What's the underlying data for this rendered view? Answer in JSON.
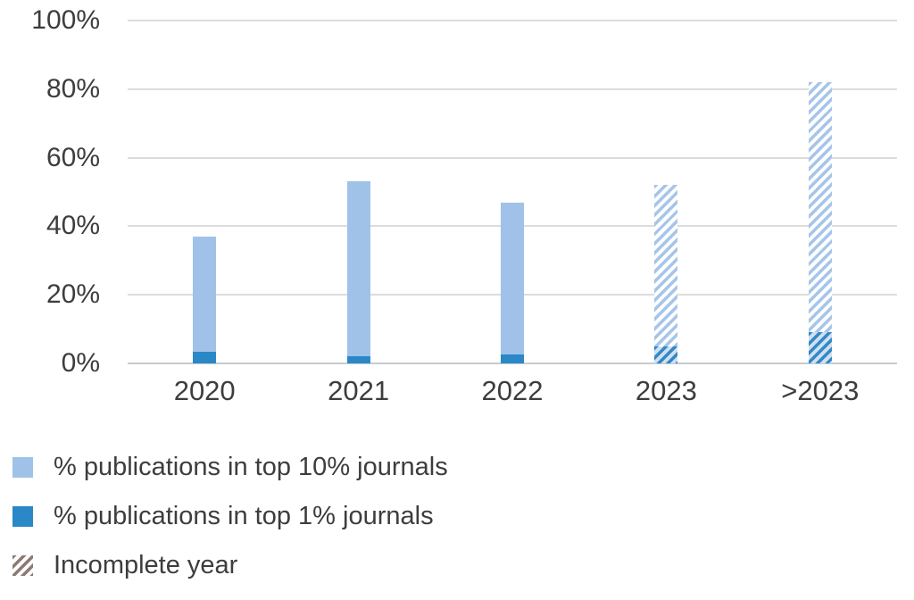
{
  "chart_data": {
    "type": "bar",
    "title": "",
    "xlabel": "",
    "ylabel": "",
    "categories": [
      "2020",
      "2021",
      "2022",
      "2023",
      ">2023"
    ],
    "series": [
      {
        "name": "% publications in top 10% journals",
        "values": [
          37,
          53,
          47,
          52,
          82
        ]
      },
      {
        "name": "% publications in top 1% journals",
        "values": [
          3.5,
          2,
          2.5,
          5,
          9
        ]
      }
    ],
    "incomplete_flags": [
      false,
      false,
      false,
      true,
      true
    ],
    "ylim": [
      0,
      100
    ],
    "yticks": [
      {
        "value": 0,
        "label": "0%"
      },
      {
        "value": 20,
        "label": "20%"
      },
      {
        "value": 40,
        "label": "40%"
      },
      {
        "value": 60,
        "label": "60%"
      },
      {
        "value": 80,
        "label": "80%"
      },
      {
        "value": 100,
        "label": "100%"
      }
    ],
    "grid": "horizontal",
    "legend_position": "bottom-left",
    "legend": [
      {
        "label": "% publications in top 10% journals",
        "swatch": "solid-light-blue"
      },
      {
        "label": "% publications in top 1% journals",
        "swatch": "solid-dark-blue"
      },
      {
        "label": "Incomplete year",
        "swatch": "hatched"
      }
    ],
    "colors": {
      "top10_fill": "#a0c2e8",
      "top1_fill": "#2a88c6",
      "hatch_top10_stripe": "#a6c5ea",
      "hatch_top10_gap": "#ffffff",
      "hatch_top1_stripe": "#3488c5",
      "hatch_top1_gap": "#cfe0f2",
      "legend_hatch_stripe": "#8d7b73",
      "legend_hatch_gap": "#ffffff",
      "gridline": "#dcdcdc",
      "axis_line": "#c7cbd1",
      "text": "#3d3d3d"
    }
  }
}
